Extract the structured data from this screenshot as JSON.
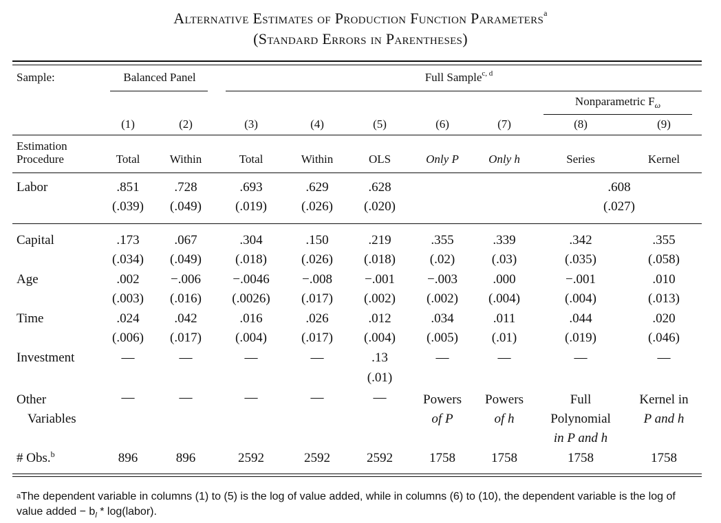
{
  "title": {
    "line1": "Alternative Estimates of Production Function Parameters",
    "line1_sup": "a",
    "line2": "(Standard Errors in Parentheses)"
  },
  "header": {
    "sample_label": "Sample:",
    "balanced_panel": "Balanced Panel",
    "full_sample": "Full Sample",
    "full_sample_sup": "c, d",
    "nonparametric": "Nonparametric F",
    "nonparametric_sub": "ω",
    "col_numbers": [
      "(1)",
      "(2)",
      "(3)",
      "(4)",
      "(5)",
      "(6)",
      "(7)",
      "(8)",
      "(9)"
    ],
    "estimation_label_1": "Estimation",
    "estimation_label_2": "Procedure",
    "procedures": [
      "Total",
      "Within",
      "Total",
      "Within",
      "OLS",
      "Only P",
      "Only h",
      "Series",
      "Kernel"
    ]
  },
  "rows": {
    "labor": {
      "label": "Labor",
      "coef": [
        ".851",
        ".728",
        ".693",
        ".629",
        ".628"
      ],
      "se": [
        "(.039)",
        "(.049)",
        "(.019)",
        "(.026)",
        "(.020)"
      ],
      "pooled_coef": ".608",
      "pooled_se": "(.027)"
    },
    "capital": {
      "label": "Capital",
      "coef": [
        ".173",
        ".067",
        ".304",
        ".150",
        ".219",
        ".355",
        ".339",
        ".342",
        ".355"
      ],
      "se": [
        "(.034)",
        "(.049)",
        "(.018)",
        "(.026)",
        "(.018)",
        "(.02)",
        "(.03)",
        "(.035)",
        "(.058)"
      ]
    },
    "age": {
      "label": "Age",
      "coef": [
        ".002",
        "−.006",
        "−.0046",
        "−.008",
        "−.001",
        "−.003",
        ".000",
        "−.001",
        ".010"
      ],
      "se": [
        "(.003)",
        "(.016)",
        "(.0026)",
        "(.017)",
        "(.002)",
        "(.002)",
        "(.004)",
        "(.004)",
        "(.013)"
      ]
    },
    "time": {
      "label": "Time",
      "coef": [
        ".024",
        ".042",
        ".016",
        ".026",
        ".012",
        ".034",
        ".011",
        ".044",
        ".020"
      ],
      "se": [
        "(.006)",
        "(.017)",
        "(.004)",
        "(.017)",
        "(.004)",
        "(.005)",
        "(.01)",
        "(.019)",
        "(.046)"
      ]
    },
    "investment": {
      "label": "Investment",
      "coef": [
        "—",
        "—",
        "—",
        "—",
        ".13",
        "—",
        "—",
        "—",
        "—"
      ],
      "se5": "(.01)"
    },
    "other": {
      "label1": "Other",
      "label2": "Variables",
      "dashes": [
        "—",
        "—",
        "—",
        "—",
        "—"
      ],
      "c6": [
        "Powers",
        "of P"
      ],
      "c7": [
        "Powers",
        "of h"
      ],
      "c8": [
        "Full",
        "Polynomial",
        "in P and h"
      ],
      "c9": [
        "Kernel in",
        "P and h"
      ]
    },
    "obs": {
      "label": "# Obs.",
      "label_sup": "b",
      "values": [
        "896",
        "896",
        "2592",
        "2592",
        "2592",
        "1758",
        "1758",
        "1758",
        "1758"
      ]
    }
  },
  "footnote": {
    "marker": "a",
    "text": "The dependent variable in columns (1) to (5) is the log of value added, while in columns (6) to (10), the dependent variable is the log of value added − b",
    "sub": "l",
    "tail": " * log(labor)."
  }
}
